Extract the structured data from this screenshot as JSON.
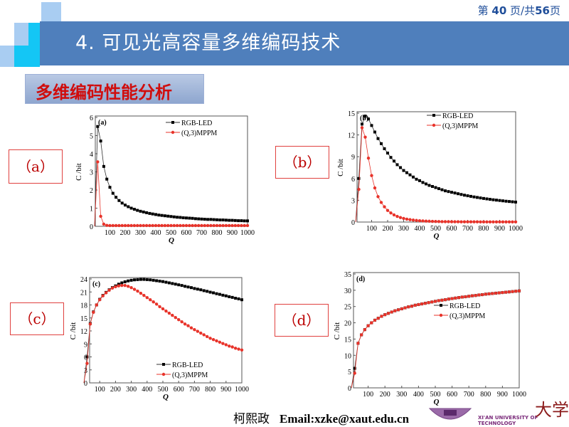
{
  "header": {
    "title": "4. 可见光高容量多维编码技术",
    "page_prefix": "第 ",
    "page_current": "40",
    "page_mid": " 页/共",
    "page_total": "56",
    "page_suffix": "页",
    "bar_color": "#4f7fbc"
  },
  "section": {
    "label": "多维编码性能分析",
    "color": "#d00d0d"
  },
  "panels": [
    "（a）",
    "（b）",
    "（c）",
    "（d）"
  ],
  "footer": {
    "author": "柯熙政",
    "email": "Email:xzke@xaut.edu.cn",
    "logo_text": "XI'AN UNIVERSITY OF TECHNOLOGY",
    "logo_glyph": "大学"
  },
  "chart_data": [
    {
      "type": "line",
      "panel": "(a)",
      "xlabel": "Q",
      "ylabel": "C /bit",
      "xlim": [
        0,
        1000
      ],
      "ylim": [
        0,
        6
      ],
      "xticks": [
        100,
        200,
        300,
        400,
        500,
        600,
        700,
        800,
        900,
        1000
      ],
      "yticks": [
        0,
        1,
        2,
        3,
        4,
        5,
        6
      ],
      "legend": "top-right",
      "x": [
        20,
        40,
        60,
        80,
        100,
        120,
        140,
        160,
        180,
        200,
        220,
        240,
        260,
        280,
        300,
        320,
        340,
        360,
        380,
        400,
        420,
        440,
        460,
        480,
        500,
        520,
        540,
        560,
        580,
        600,
        620,
        640,
        660,
        680,
        700,
        720,
        740,
        760,
        780,
        800,
        820,
        840,
        860,
        880,
        900,
        920,
        940,
        960,
        980,
        1000
      ],
      "series": [
        {
          "name": "RGB-LED",
          "color": "#000000",
          "marker": "square",
          "values": [
            5.5,
            4.7,
            3.3,
            2.6,
            2.15,
            1.82,
            1.6,
            1.42,
            1.28,
            1.17,
            1.08,
            1.0,
            0.94,
            0.88,
            0.83,
            0.79,
            0.75,
            0.71,
            0.68,
            0.65,
            0.62,
            0.6,
            0.58,
            0.56,
            0.54,
            0.52,
            0.5,
            0.49,
            0.47,
            0.46,
            0.45,
            0.44,
            0.42,
            0.41,
            0.4,
            0.39,
            0.38,
            0.38,
            0.37,
            0.36,
            0.35,
            0.35,
            0.34,
            0.33,
            0.33,
            0.32,
            0.31,
            0.31,
            0.3,
            0.3
          ]
        },
        {
          "name": "(Q,3)MPPM",
          "color": "#e8332a",
          "marker": "circle",
          "values": [
            3.55,
            0.55,
            0.12,
            0.05,
            0.04,
            0.04,
            0.04,
            0.04,
            0.04,
            0.04,
            0.04,
            0.04,
            0.04,
            0.04,
            0.04,
            0.04,
            0.04,
            0.04,
            0.04,
            0.04,
            0.04,
            0.04,
            0.04,
            0.04,
            0.04,
            0.04,
            0.04,
            0.04,
            0.04,
            0.04,
            0.04,
            0.04,
            0.04,
            0.04,
            0.04,
            0.04,
            0.04,
            0.04,
            0.04,
            0.04,
            0.04,
            0.04,
            0.04,
            0.04,
            0.04,
            0.04,
            0.04,
            0.04,
            0.04,
            0.04
          ]
        }
      ]
    },
    {
      "type": "line",
      "panel": "(b)",
      "xlabel": "Q",
      "ylabel": "C /bit",
      "xlim": [
        0,
        1000
      ],
      "ylim": [
        0,
        15
      ],
      "xticks": [
        100,
        200,
        300,
        400,
        500,
        600,
        700,
        800,
        900,
        1000
      ],
      "yticks": [
        0,
        3,
        6,
        9,
        12,
        15
      ],
      "legend": "top-right",
      "x": [
        20,
        40,
        60,
        80,
        100,
        120,
        140,
        160,
        180,
        200,
        220,
        240,
        260,
        280,
        300,
        320,
        340,
        360,
        380,
        400,
        420,
        440,
        460,
        480,
        500,
        520,
        540,
        560,
        580,
        600,
        620,
        640,
        660,
        680,
        700,
        720,
        740,
        760,
        780,
        800,
        820,
        840,
        860,
        880,
        900,
        920,
        940,
        960,
        980,
        1000
      ],
      "series": [
        {
          "name": "RGB-LED",
          "color": "#000000",
          "marker": "square",
          "values": [
            6,
            13.5,
            14.6,
            14.2,
            13.3,
            12.4,
            11.5,
            10.8,
            10.1,
            9.5,
            8.9,
            8.4,
            7.9,
            7.5,
            7.1,
            6.8,
            6.5,
            6.2,
            5.9,
            5.7,
            5.45,
            5.25,
            5.05,
            4.9,
            4.75,
            4.6,
            4.45,
            4.3,
            4.2,
            4.1,
            4.0,
            3.9,
            3.8,
            3.7,
            3.62,
            3.54,
            3.46,
            3.39,
            3.32,
            3.25,
            3.19,
            3.13,
            3.07,
            3.02,
            2.97,
            2.92,
            2.87,
            2.83,
            2.79,
            2.75
          ]
        },
        {
          "name": "(Q,3)MPPM",
          "color": "#e8332a",
          "marker": "circle",
          "values": [
            4.5,
            13,
            11.7,
            8.8,
            6.4,
            4.7,
            3.5,
            2.7,
            2.1,
            1.6,
            1.25,
            0.98,
            0.78,
            0.62,
            0.5,
            0.4,
            0.33,
            0.27,
            0.22,
            0.18,
            0.15,
            0.13,
            0.11,
            0.09,
            0.08,
            0.07,
            0.06,
            0.05,
            0.05,
            0.04,
            0.04,
            0.04,
            0.03,
            0.03,
            0.03,
            0.03,
            0.03,
            0.03,
            0.02,
            0.02,
            0.02,
            0.02,
            0.02,
            0.02,
            0.02,
            0.02,
            0.02,
            0.02,
            0.02,
            0.02
          ]
        }
      ]
    },
    {
      "type": "line",
      "panel": "(c)",
      "xlabel": "Q",
      "ylabel": "C /bit",
      "xlim": [
        0,
        1000
      ],
      "ylim": [
        0,
        24
      ],
      "xticks": [
        100,
        200,
        300,
        400,
        500,
        600,
        700,
        800,
        900,
        1000
      ],
      "yticks": [
        0,
        3,
        6,
        9,
        12,
        15,
        18,
        21,
        24
      ],
      "legend": "bottom-right",
      "x": [
        20,
        40,
        60,
        80,
        100,
        120,
        140,
        160,
        180,
        200,
        220,
        240,
        260,
        280,
        300,
        320,
        340,
        360,
        380,
        400,
        420,
        440,
        460,
        480,
        500,
        520,
        540,
        560,
        580,
        600,
        620,
        640,
        660,
        680,
        700,
        720,
        740,
        760,
        780,
        800,
        820,
        840,
        860,
        880,
        900,
        920,
        940,
        960,
        980,
        1000
      ],
      "series": [
        {
          "name": "RGB-LED",
          "color": "#000000",
          "marker": "square",
          "values": [
            6,
            13.7,
            16.4,
            18,
            19.3,
            20.2,
            20.9,
            21.5,
            22,
            22.4,
            22.8,
            23.1,
            23.35,
            23.55,
            23.7,
            23.8,
            23.85,
            23.9,
            23.9,
            23.85,
            23.8,
            23.7,
            23.6,
            23.5,
            23.4,
            23.25,
            23.1,
            22.95,
            22.8,
            22.65,
            22.5,
            22.3,
            22.15,
            22,
            21.8,
            21.65,
            21.5,
            21.3,
            21.15,
            20.95,
            20.8,
            20.6,
            20.45,
            20.25,
            20.1,
            19.9,
            19.75,
            19.55,
            19.4,
            19.2
          ]
        },
        {
          "name": "(Q,3)MPPM",
          "color": "#e8332a",
          "marker": "circle",
          "values": [
            4.5,
            13.6,
            16.3,
            18,
            19.2,
            20.1,
            20.8,
            21.4,
            21.9,
            22.2,
            22.4,
            22.5,
            22.5,
            22.3,
            22,
            21.6,
            21.2,
            20.7,
            20.2,
            19.7,
            19.2,
            18.7,
            18.2,
            17.6,
            17.1,
            16.6,
            16.1,
            15.6,
            15.1,
            14.6,
            14.1,
            13.6,
            13.2,
            12.7,
            12.3,
            11.9,
            11.5,
            11.1,
            10.7,
            10.3,
            10,
            9.7,
            9.4,
            9.1,
            8.8,
            8.5,
            8.3,
            8,
            7.8,
            7.6
          ]
        }
      ]
    },
    {
      "type": "line",
      "panel": "(d)",
      "xlabel": "Q",
      "ylabel": "C /bit",
      "xlim": [
        0,
        1000
      ],
      "ylim": [
        0,
        35
      ],
      "xticks": [
        100,
        200,
        300,
        400,
        500,
        600,
        700,
        800,
        900,
        1000
      ],
      "yticks": [
        0,
        5,
        10,
        15,
        20,
        25,
        30,
        35
      ],
      "legend": "right",
      "x": [
        20,
        40,
        60,
        80,
        100,
        120,
        140,
        160,
        180,
        200,
        220,
        240,
        260,
        280,
        300,
        320,
        340,
        360,
        380,
        400,
        420,
        440,
        460,
        480,
        500,
        520,
        540,
        560,
        580,
        600,
        620,
        640,
        660,
        680,
        700,
        720,
        740,
        760,
        780,
        800,
        820,
        840,
        860,
        880,
        900,
        920,
        940,
        960,
        980,
        1000
      ],
      "series": [
        {
          "name": "RGB-LED",
          "color": "#000000",
          "marker": "square",
          "values": [
            6,
            13.7,
            16.3,
            17.9,
            19.1,
            20,
            20.8,
            21.4,
            22,
            22.5,
            22.9,
            23.3,
            23.7,
            24,
            24.3,
            24.6,
            24.9,
            25.1,
            25.4,
            25.6,
            25.8,
            26,
            26.2,
            26.4,
            26.6,
            26.8,
            26.95,
            27.1,
            27.3,
            27.45,
            27.6,
            27.75,
            27.9,
            28,
            28.15,
            28.3,
            28.4,
            28.55,
            28.65,
            28.8,
            28.9,
            29,
            29.1,
            29.2,
            29.3,
            29.4,
            29.5,
            29.6,
            29.7,
            29.8
          ]
        },
        {
          "name": "(Q,3)MPPM",
          "color": "#e8332a",
          "marker": "circle",
          "values": [
            4.5,
            13.7,
            16.3,
            17.9,
            19.1,
            20,
            20.8,
            21.4,
            22,
            22.5,
            22.9,
            23.3,
            23.7,
            24,
            24.3,
            24.6,
            24.9,
            25.1,
            25.4,
            25.6,
            25.8,
            26,
            26.2,
            26.4,
            26.6,
            26.8,
            26.95,
            27.1,
            27.3,
            27.45,
            27.6,
            27.75,
            27.9,
            28,
            28.15,
            28.3,
            28.4,
            28.55,
            28.65,
            28.8,
            28.9,
            29,
            29.1,
            29.2,
            29.3,
            29.4,
            29.5,
            29.6,
            29.7,
            29.8
          ]
        }
      ]
    }
  ]
}
